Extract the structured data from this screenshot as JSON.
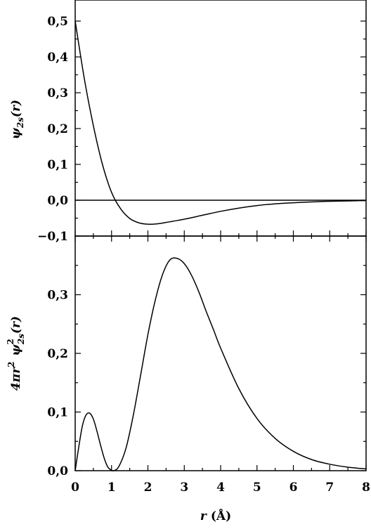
{
  "chart_data": [
    {
      "type": "line",
      "panel": "top",
      "title": "",
      "ylabel": {
        "symbol": "ψ",
        "sub": "2s",
        "arg": "(r)"
      },
      "xlim": [
        0,
        8
      ],
      "ylim": [
        -0.1,
        0.55
      ],
      "yticks": [
        -0.1,
        0.0,
        0.1,
        0.2,
        0.3,
        0.4,
        0.5
      ],
      "ytick_labels": [
        "−0,1",
        "0,0",
        "0,1",
        "0,2",
        "0,3",
        "0,4",
        "0,5"
      ],
      "zero_line": true,
      "series": [
        {
          "x": [
            0,
            0.25,
            0.5,
            0.75,
            1.0,
            1.25,
            1.5,
            1.75,
            2.0,
            2.25,
            2.5,
            3.0,
            3.5,
            4.0,
            4.5,
            5.0,
            5.5,
            6.0,
            7.0,
            8.0
          ],
          "y": [
            0.5,
            0.34,
            0.208,
            0.1,
            0.022,
            -0.024,
            -0.051,
            -0.063,
            -0.067,
            -0.066,
            -0.062,
            -0.053,
            -0.042,
            -0.031,
            -0.022,
            -0.015,
            -0.01,
            -0.007,
            -0.003,
            -0.001
          ]
        }
      ]
    },
    {
      "type": "line",
      "panel": "bottom",
      "title": "",
      "ylabel": {
        "prefix": "4πr",
        "sup": "2",
        "symbol": "ψ",
        "sub": "2s",
        "sup2": "2",
        "arg": "(r)"
      },
      "xlabel": {
        "symbol": "r",
        "unit": "(Å)"
      },
      "xlim": [
        0,
        8
      ],
      "ylim": [
        0,
        0.375
      ],
      "xticks": [
        0,
        1,
        2,
        3,
        4,
        5,
        6,
        7,
        8
      ],
      "xtick_labels": [
        "0",
        "1",
        "2",
        "3",
        "4",
        "5",
        "6",
        "7",
        "8"
      ],
      "yticks": [
        0.0,
        0.1,
        0.2,
        0.3
      ],
      "ytick_labels": [
        "0,0",
        "0,1",
        "0,2",
        "0,3"
      ],
      "series": [
        {
          "x": [
            0,
            0.1,
            0.2,
            0.3,
            0.4,
            0.5,
            0.6,
            0.7,
            0.8,
            0.9,
            1.0,
            1.06,
            1.2,
            1.4,
            1.6,
            1.8,
            2.0,
            2.2,
            2.4,
            2.6,
            2.8,
            3.0,
            3.2,
            3.4,
            3.6,
            3.8,
            4.0,
            4.5,
            5.0,
            5.5,
            6.0,
            6.5,
            7.0,
            7.5,
            8.0
          ],
          "y": [
            0,
            0.041,
            0.077,
            0.095,
            0.098,
            0.088,
            0.067,
            0.043,
            0.021,
            0.006,
            0.001,
            0.0,
            0.007,
            0.039,
            0.095,
            0.163,
            0.232,
            0.29,
            0.334,
            0.359,
            0.362,
            0.353,
            0.333,
            0.305,
            0.272,
            0.241,
            0.209,
            0.14,
            0.089,
            0.055,
            0.033,
            0.019,
            0.011,
            0.006,
            0.003
          ]
        }
      ]
    }
  ]
}
